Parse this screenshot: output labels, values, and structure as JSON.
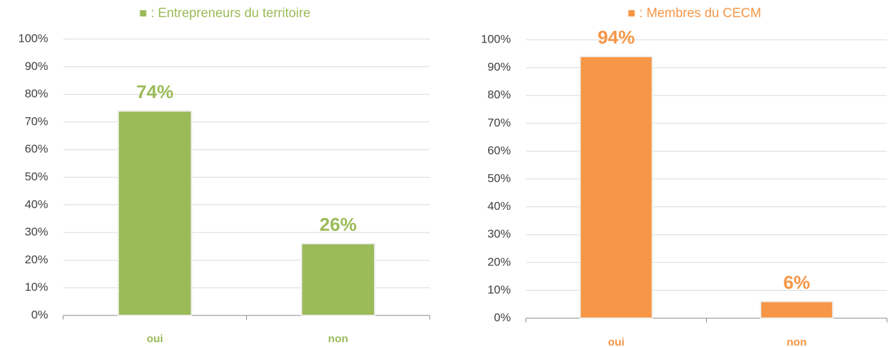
{
  "chart_data": [
    {
      "type": "bar",
      "title": "■ : Entrepreneurs du territoire",
      "categories": [
        "oui",
        "non"
      ],
      "values": [
        74,
        26
      ],
      "value_labels": [
        "74%",
        "26%"
      ],
      "color": "#9bbb59",
      "ylim": [
        0,
        100
      ],
      "yticks": [
        {
          "value": 0,
          "label": "0%"
        },
        {
          "value": 10,
          "label": "10%"
        },
        {
          "value": 20,
          "label": "20%"
        },
        {
          "value": 30,
          "label": "30%"
        },
        {
          "value": 40,
          "label": "40%"
        },
        {
          "value": 50,
          "label": "50%"
        },
        {
          "value": 60,
          "label": "60%"
        },
        {
          "value": 70,
          "label": "70%"
        },
        {
          "value": 80,
          "label": "80%"
        },
        {
          "value": 90,
          "label": "90%"
        },
        {
          "value": 100,
          "label": "100%"
        }
      ],
      "grid": true
    },
    {
      "type": "bar",
      "title": "■ : Membres du CECM",
      "categories": [
        "oui",
        "non"
      ],
      "values": [
        94,
        6
      ],
      "value_labels": [
        "94%",
        "6%"
      ],
      "color": "#f79646",
      "ylim": [
        0,
        100
      ],
      "yticks": [
        {
          "value": 0,
          "label": "0%"
        },
        {
          "value": 10,
          "label": "10%"
        },
        {
          "value": 20,
          "label": "20%"
        },
        {
          "value": 30,
          "label": "30%"
        },
        {
          "value": 40,
          "label": "40%"
        },
        {
          "value": 50,
          "label": "50%"
        },
        {
          "value": 60,
          "label": "60%"
        },
        {
          "value": 70,
          "label": "70%"
        },
        {
          "value": 80,
          "label": "80%"
        },
        {
          "value": 90,
          "label": "90%"
        },
        {
          "value": 100,
          "label": "100%"
        }
      ],
      "grid": true
    }
  ]
}
